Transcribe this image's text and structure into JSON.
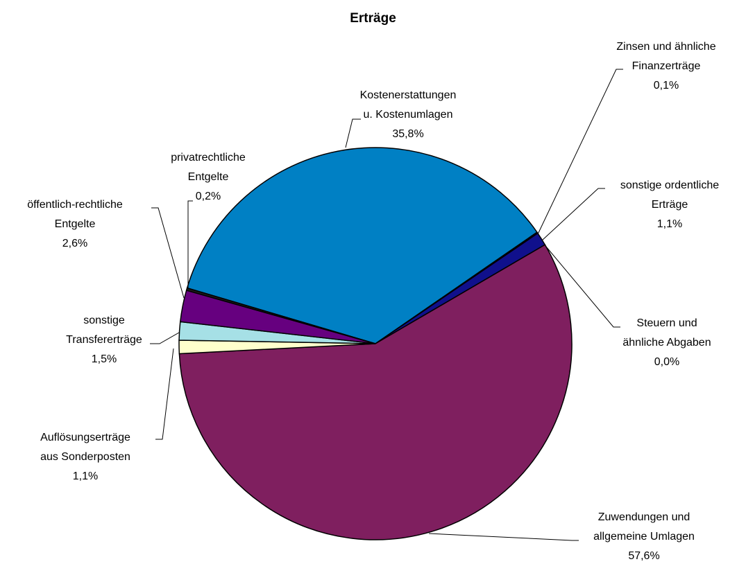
{
  "chart_data": {
    "type": "pie",
    "title": "Erträge",
    "categories": [
      "Kostenerstattungen u. Kostenumlagen",
      "Zinsen und ähnliche Finanzerträge",
      "sonstige ordentliche Erträge",
      "Steuern und ähnliche Abgaben",
      "Zuwendungen und allgemeine Umlagen",
      "Auflösungserträge aus Sonderposten",
      "sonstige Transfererträge",
      "öffentlich-rechtliche Entgelte",
      "privatrechtliche Entgelte"
    ],
    "values": [
      35.8,
      0.1,
      1.1,
      0.0,
      57.6,
      1.1,
      1.5,
      2.6,
      0.2
    ],
    "value_labels": [
      "35,8%",
      "0,1%",
      "1,1%",
      "0,0%",
      "57,6%",
      "1,1%",
      "1,5%",
      "2,6%",
      "0,2%"
    ],
    "colors": [
      "#0080c4",
      "#000080",
      "#10108c",
      "#3333cc",
      "#7f1f5f",
      "#ffffcc",
      "#a6e0e6",
      "#66007f",
      "#1a1a1a"
    ]
  }
}
